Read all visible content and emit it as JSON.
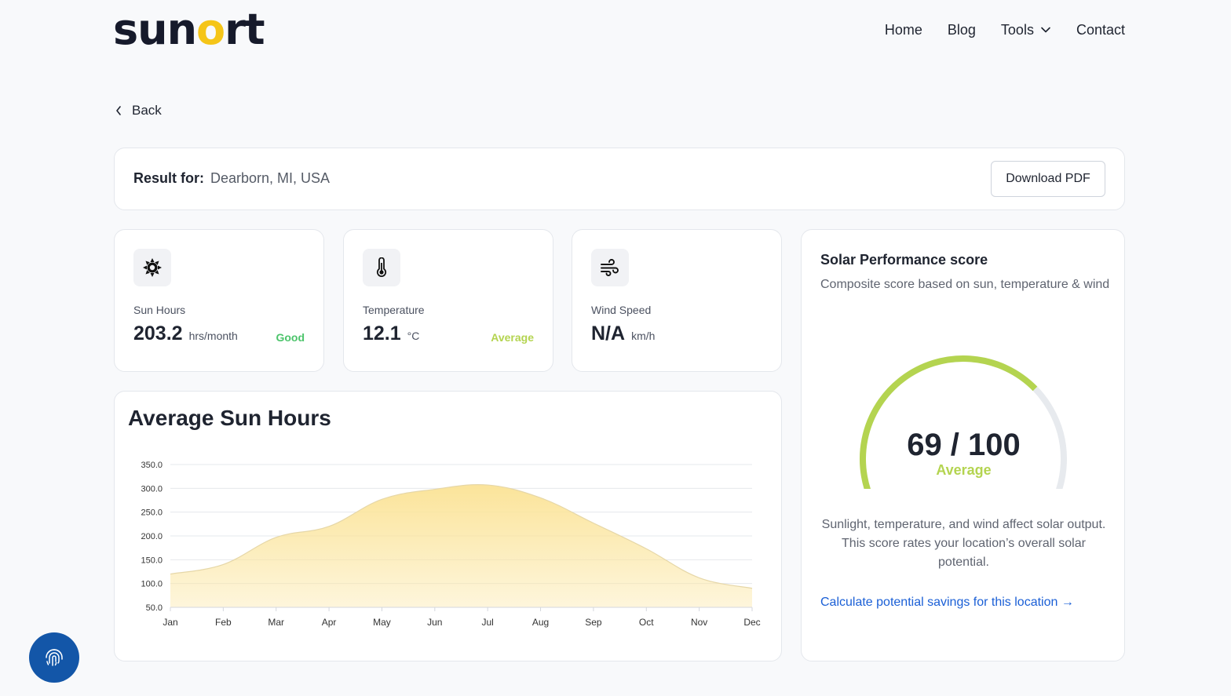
{
  "header": {
    "logo": {
      "pre": "sun",
      "accent": "o",
      "post": "rt"
    },
    "nav": [
      {
        "label": "Home"
      },
      {
        "label": "Blog"
      },
      {
        "label": "Tools",
        "icon": "chevron-down-icon"
      },
      {
        "label": "Contact"
      }
    ]
  },
  "back": {
    "label": "Back"
  },
  "result": {
    "label": "Result for:",
    "location": "Dearborn, MI, USA",
    "download_label": "Download PDF"
  },
  "metrics": [
    {
      "icon": "sun-icon",
      "label": "Sun Hours",
      "value": "203.2",
      "unit": "hrs/month",
      "status": "Good",
      "status_color": "#4cc46b"
    },
    {
      "icon": "thermometer-icon",
      "label": "Temperature",
      "value": "12.1",
      "unit": "°C",
      "status": "Average",
      "status_color": "#b4d450"
    },
    {
      "icon": "wind-icon",
      "label": "Wind Speed",
      "value": "N/A",
      "unit": "km/h",
      "status": "",
      "status_color": ""
    }
  ],
  "chart_data": {
    "type": "area",
    "title": "Average Sun Hours",
    "categories": [
      "Jan",
      "Feb",
      "Mar",
      "Apr",
      "May",
      "Jun",
      "Jul",
      "Aug",
      "Sep",
      "Oct",
      "Nov",
      "Dec"
    ],
    "values": [
      120,
      140,
      197,
      220,
      277,
      298,
      307,
      280,
      227,
      173,
      112,
      90
    ],
    "ylim": [
      50,
      350
    ],
    "yticks": [
      "350.0",
      "300.0",
      "250.0",
      "200.0",
      "150.0",
      "100.0",
      "50.0"
    ],
    "ytick_values": [
      350,
      300,
      250,
      200,
      150,
      100,
      50
    ],
    "grid": true,
    "fill_color": "#fbe49a",
    "line_color": "#e6d7a8"
  },
  "score": {
    "title": "Solar Performance score",
    "subtitle": "Composite score based on sun, temperature & wind",
    "value": 69,
    "max": 100,
    "display": "69 / 100",
    "rating": "Average",
    "accent_color": "#b4d450",
    "track_color": "#e7eaee",
    "description": "Sunlight, temperature, and wind affect solar output. This score rates your location’s overall solar potential.",
    "link": "Calculate potential savings for this location →"
  },
  "fab": {
    "icon": "fingerprint-icon"
  }
}
